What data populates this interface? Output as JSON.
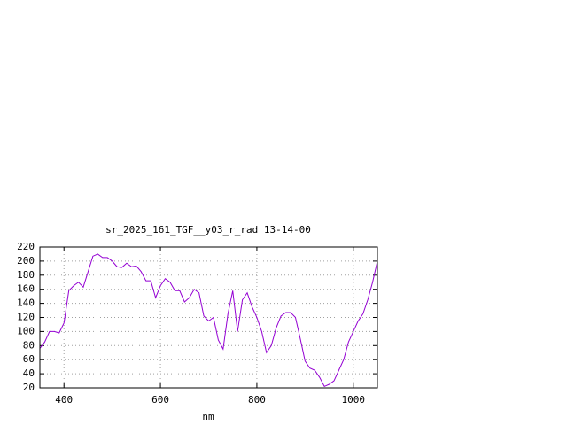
{
  "chart_data": {
    "type": "line",
    "title": "sr_2025_161_TGF__y03_r_rad 13-14-00",
    "x_label": "nm",
    "x": [
      350,
      360,
      370,
      380,
      390,
      400,
      410,
      420,
      430,
      440,
      450,
      460,
      470,
      480,
      490,
      500,
      510,
      520,
      530,
      540,
      550,
      560,
      570,
      580,
      590,
      600,
      610,
      620,
      630,
      640,
      650,
      660,
      670,
      680,
      690,
      700,
      710,
      720,
      730,
      740,
      750,
      760,
      770,
      780,
      790,
      800,
      810,
      820,
      830,
      840,
      850,
      860,
      870,
      880,
      890,
      900,
      910,
      920,
      930,
      940,
      950,
      960,
      970,
      980,
      990,
      1000,
      1010,
      1020,
      1030,
      1040,
      1050
    ],
    "series": [
      {
        "color": "#9400d3",
        "values": [
          76,
          85,
          100,
          100,
          98,
          112,
          158,
          165,
          170,
          163,
          185,
          207,
          210,
          205,
          205,
          200,
          192,
          191,
          197,
          192,
          193,
          185,
          172,
          172,
          148,
          165,
          175,
          170,
          158,
          158,
          142,
          148,
          160,
          155,
          122,
          115,
          120,
          88,
          75,
          125,
          158,
          100,
          145,
          155,
          135,
          120,
          100,
          70,
          80,
          105,
          122,
          127,
          127,
          120,
          90,
          58,
          48,
          45,
          35,
          22,
          25,
          30,
          45,
          60,
          85,
          100,
          115,
          125,
          145,
          170,
          200
        ]
      }
    ],
    "xlim": [
      350,
      1050
    ],
    "xticks": [
      400,
      600,
      800,
      1000
    ],
    "ylim": [
      20,
      220
    ],
    "yticks": [
      20,
      40,
      60,
      80,
      100,
      120,
      140,
      160,
      180,
      200,
      220
    ],
    "grid": true
  }
}
